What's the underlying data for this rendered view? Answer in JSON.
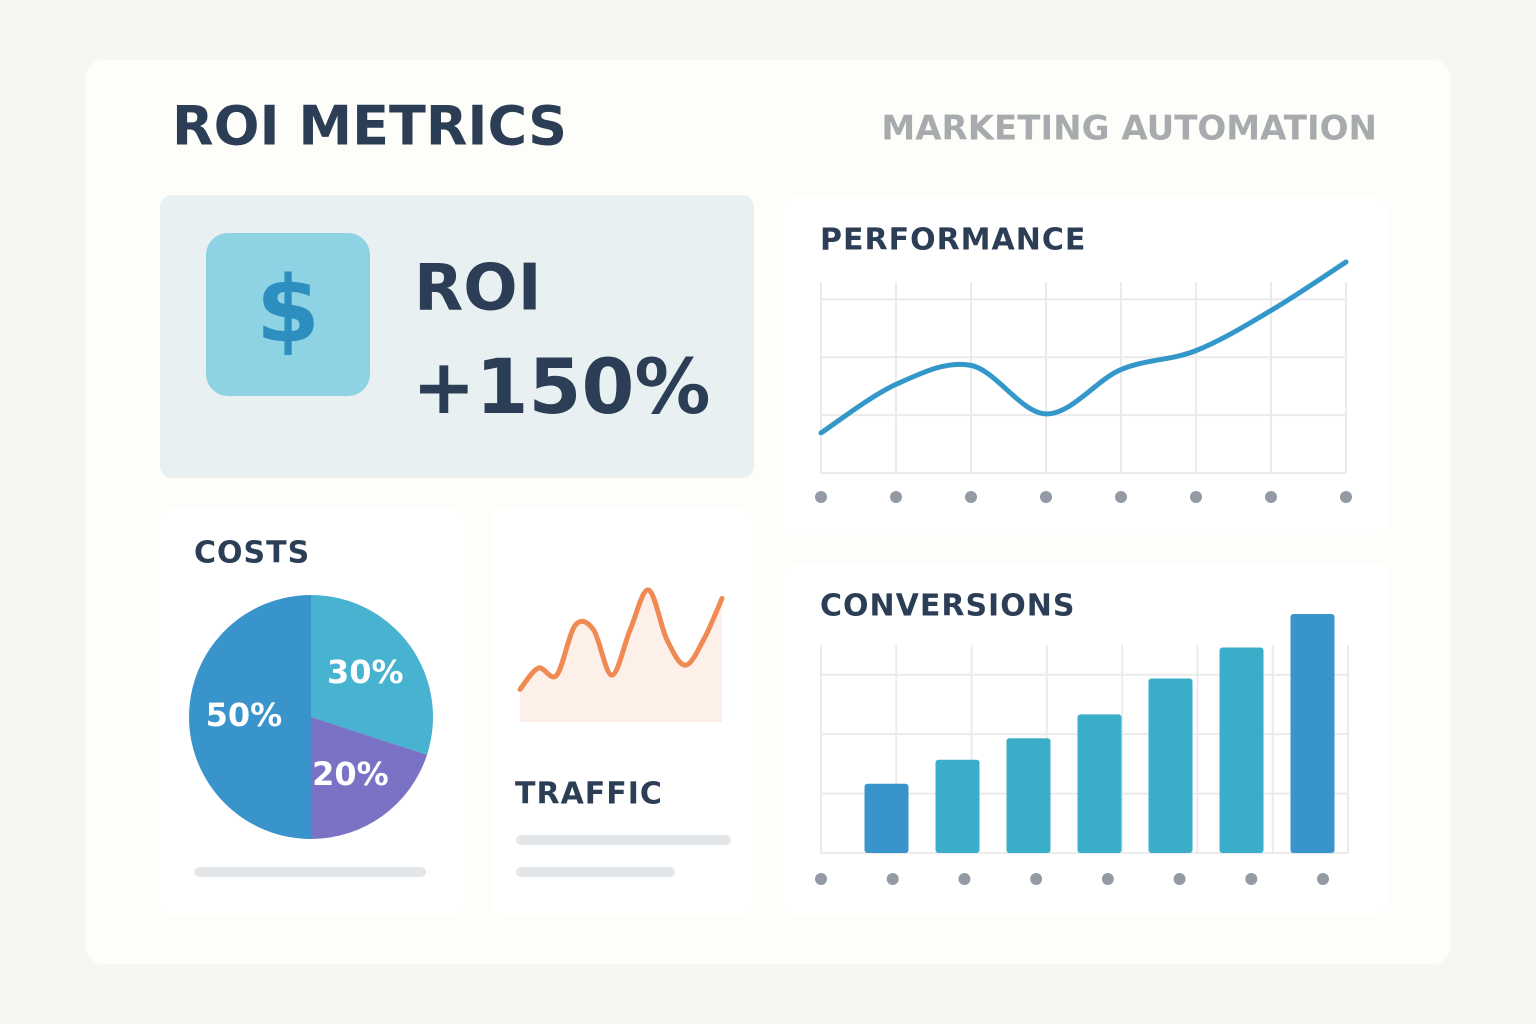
{
  "header": {
    "title": "ROI METRICS",
    "subtitle": "MARKETING AUTOMATION"
  },
  "roi_card": {
    "icon": "$",
    "label": "ROI",
    "value": "+150%"
  },
  "chart_data": [
    {
      "type": "line",
      "title": "PERFORMANCE",
      "values": [
        19,
        42,
        51,
        28,
        49,
        58,
        77,
        100
      ],
      "color": "#3398c9",
      "ylim": [
        0,
        100
      ],
      "grid": true
    },
    {
      "type": "pie",
      "title": "COSTS",
      "values": [
        30,
        20,
        50
      ],
      "value_labels": [
        "30%",
        "20%",
        "50%"
      ],
      "colors": [
        "#47b3d1",
        "#7a72c4",
        "#3a94cc"
      ]
    },
    {
      "type": "area",
      "title": "TRAFFIC",
      "values": [
        23,
        38,
        33,
        68,
        65,
        33,
        65,
        93,
        58,
        40,
        58,
        87
      ],
      "color": "#ef8a55",
      "ylim": [
        0,
        100
      ]
    },
    {
      "type": "bar",
      "title": "CONVERSIONS",
      "values": [
        29,
        39,
        48,
        58,
        73,
        86,
        100
      ],
      "colors": [
        "#3a94cc",
        "#3aadc9",
        "#3aadc9",
        "#3aadc9",
        "#3aadc9",
        "#3aadc9",
        "#3a94cc"
      ],
      "ylim": [
        0,
        100
      ],
      "grid": true
    }
  ]
}
